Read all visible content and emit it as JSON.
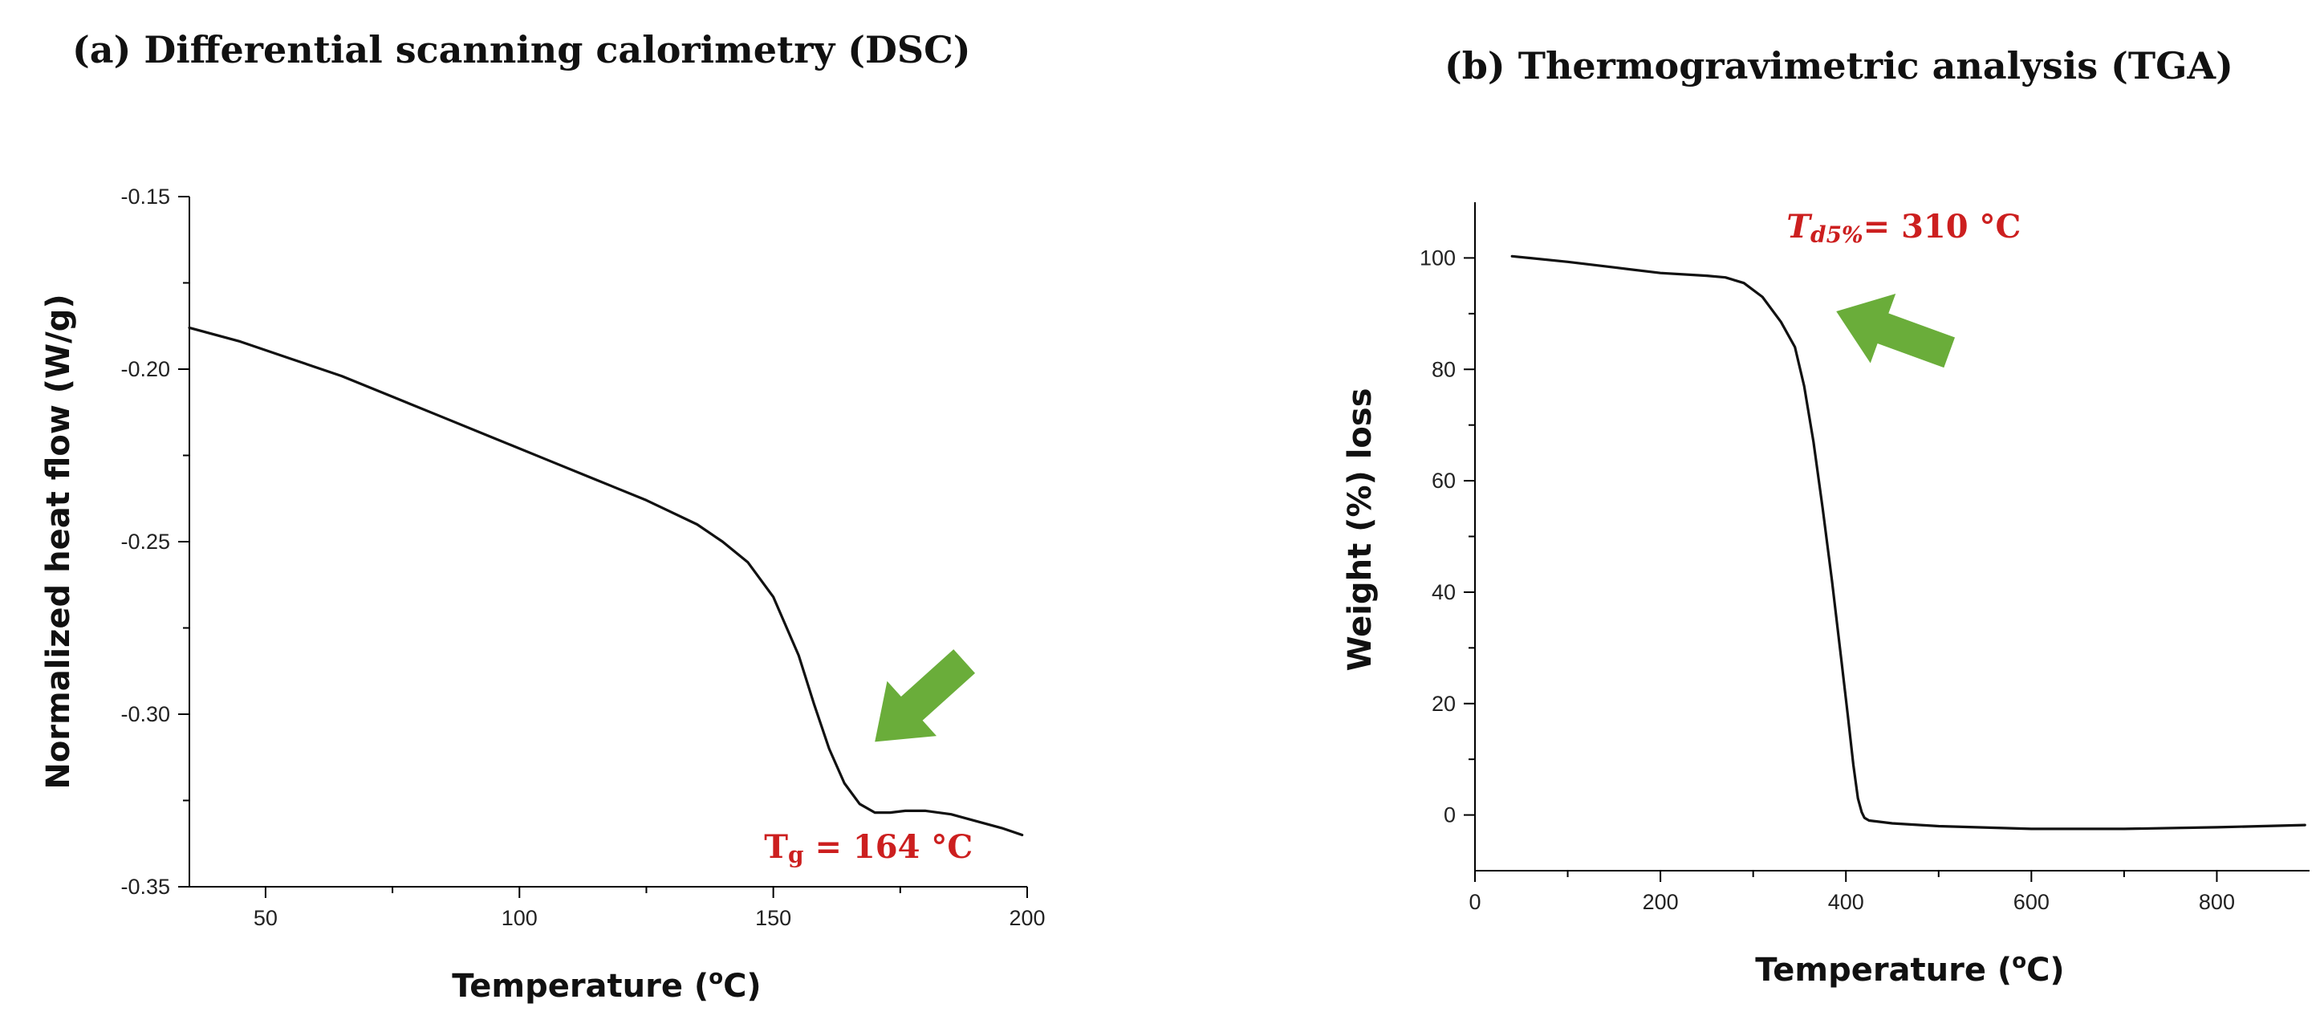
{
  "colors": {
    "annotation": "#cc1f1f",
    "arrow": "#6aad3a",
    "curve": "#111111"
  },
  "chart_data": [
    {
      "type": "line",
      "title": "(a) Differential scanning calorimetry (DSC)",
      "xlabel": "Temperature (",
      "xlabel_sup": "o",
      "xlabel_tail": "C)",
      "ylabel": "Normalized heat flow (W/g)",
      "xlim": [
        35,
        200
      ],
      "ylim": [
        -0.35,
        -0.15
      ],
      "xticks": [
        50,
        100,
        150,
        200
      ],
      "xtick_labels": [
        "50",
        "100",
        "150",
        "200"
      ],
      "yticks": [
        -0.35,
        -0.3,
        -0.25,
        -0.2,
        -0.15
      ],
      "ytick_labels": [
        "-0.35",
        "-0.30",
        "-0.25",
        "-0.20",
        "-0.15"
      ],
      "series": [
        {
          "name": "DSC",
          "x": [
            35,
            45,
            55,
            65,
            75,
            85,
            95,
            105,
            115,
            125,
            135,
            140,
            145,
            150,
            155,
            158,
            161,
            164,
            167,
            170,
            173,
            176,
            180,
            185,
            190,
            195,
            199
          ],
          "y": [
            -0.188,
            -0.192,
            -0.197,
            -0.202,
            -0.208,
            -0.214,
            -0.22,
            -0.226,
            -0.232,
            -0.238,
            -0.245,
            -0.25,
            -0.256,
            -0.266,
            -0.283,
            -0.297,
            -0.31,
            -0.32,
            -0.326,
            -0.3285,
            -0.3285,
            -0.328,
            -0.328,
            -0.329,
            -0.331,
            -0.333,
            -0.335
          ]
        }
      ],
      "annotation": {
        "prefix": "T",
        "sub": "g",
        "text": " = 164 °C",
        "at_x": 164
      },
      "arrow": {
        "points_to": [
          170,
          -0.308
        ],
        "direction": "down-left"
      }
    },
    {
      "type": "line",
      "title": "(b) Thermogravimetric analysis (TGA)",
      "xlabel": "Temperature (",
      "xlabel_sup": "o",
      "xlabel_tail": "C)",
      "ylabel": "Weight (%) loss",
      "xlim": [
        0,
        900
      ],
      "ylim": [
        -10,
        110
      ],
      "xticks": [
        0,
        200,
        400,
        600,
        800
      ],
      "xtick_labels": [
        "0",
        "200",
        "400",
        "600",
        "800"
      ],
      "yticks": [
        0,
        20,
        40,
        60,
        80,
        100
      ],
      "ytick_labels": [
        "0",
        "20",
        "40",
        "60",
        "80",
        "100"
      ],
      "series": [
        {
          "name": "TGA",
          "x": [
            40,
            100,
            150,
            200,
            250,
            270,
            290,
            310,
            330,
            345,
            355,
            365,
            375,
            385,
            395,
            402,
            408,
            413,
            417,
            420,
            425,
            435,
            450,
            500,
            600,
            700,
            800,
            895
          ],
          "y": [
            100.3,
            99.3,
            98.3,
            97.3,
            96.8,
            96.5,
            95.5,
            93.0,
            88.5,
            84.0,
            77.0,
            67.0,
            55.0,
            42.0,
            28.0,
            18.0,
            9.0,
            3.0,
            0.5,
            -0.5,
            -1.0,
            -1.2,
            -1.5,
            -2.0,
            -2.5,
            -2.5,
            -2.2,
            -1.8
          ]
        }
      ],
      "annotation": {
        "prefix": "T",
        "sub": "d5%",
        "text": "= 310 °C",
        "at_x": 310
      },
      "arrow": {
        "points_to": [
          355,
          93
        ],
        "direction": "left"
      }
    }
  ]
}
